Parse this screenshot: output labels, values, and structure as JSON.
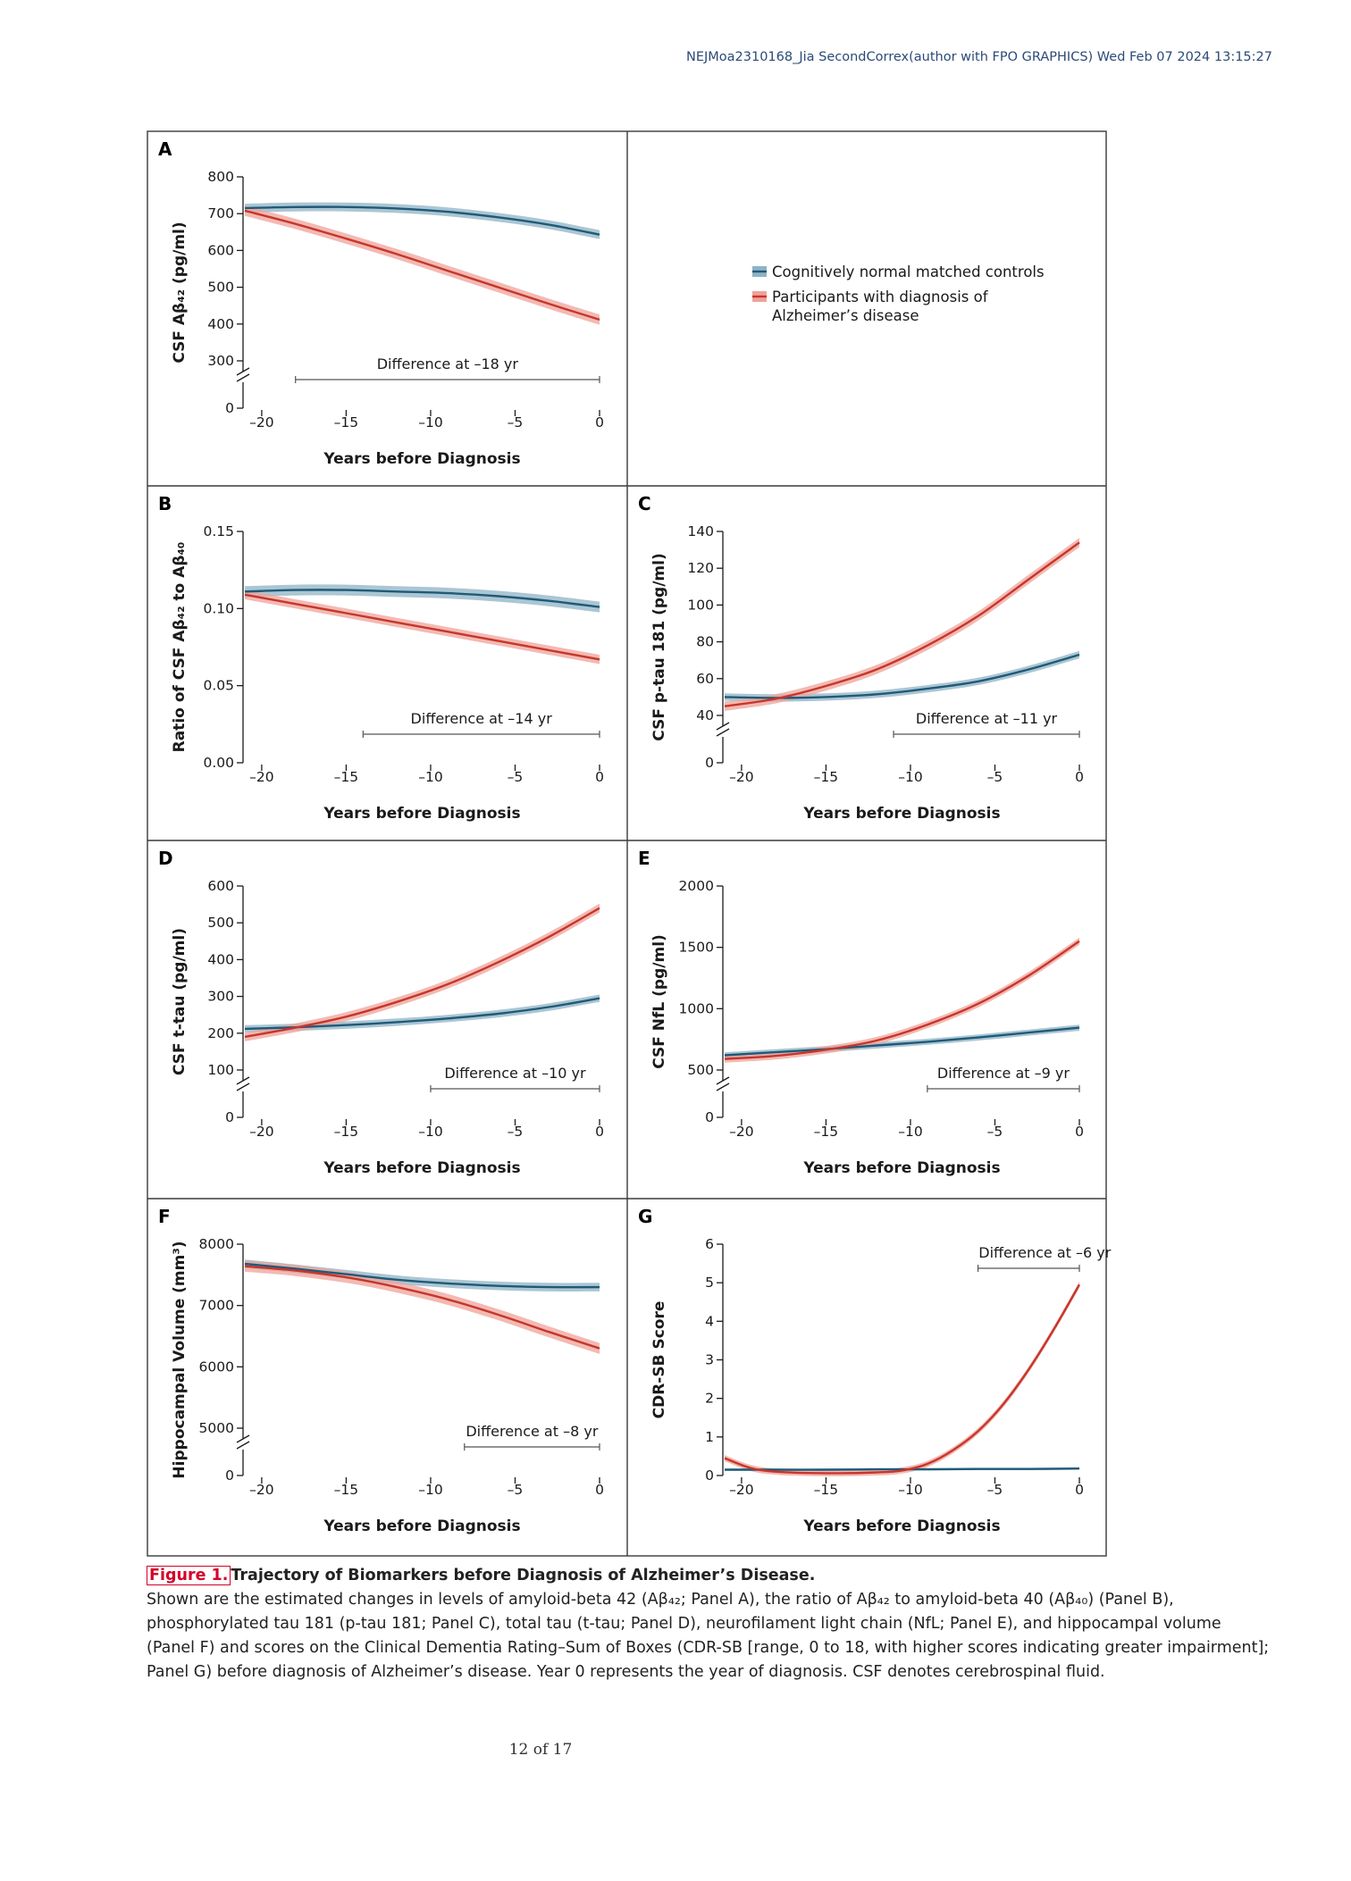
{
  "header": {
    "text": "NEJMoa2310168_Jia   SecondCorrex(author with FPO GRAPHICS)   Wed Feb 07 2024 13:15:27"
  },
  "colors": {
    "control_line": "#1f5a78",
    "control_band": "#8fb3c4",
    "ad_line": "#c8352b",
    "ad_band": "#eea39a",
    "frame": "#3a3a3a"
  },
  "legend": {
    "items": [
      {
        "label": "Cognitively normal matched controls",
        "color": "#1f5a78",
        "band": "#8fb3c4"
      },
      {
        "label_lines": [
          "Participants with diagnosis of",
          "Alzheimer’s disease"
        ],
        "color": "#c8352b",
        "band": "#eea39a"
      }
    ]
  },
  "chart_data": [
    {
      "panel": "A",
      "type": "line",
      "xlabel": "Years before Diagnosis",
      "ylabel": "CSF Aβ₄₂ (pg/ml)",
      "xlim": [
        -21,
        0
      ],
      "xticks": [
        -20,
        -15,
        -10,
        -5,
        0
      ],
      "ylim": [
        300,
        800
      ],
      "yticks": [
        300,
        400,
        500,
        600,
        700,
        800
      ],
      "axis_break": true,
      "difference_label": "Difference at –18 yr",
      "difference_at": -18,
      "series": [
        {
          "name": "Cognitively normal matched controls",
          "x": [
            -21,
            -18,
            -15,
            -12,
            -9,
            -6,
            -3,
            0
          ],
          "y": [
            715,
            718,
            718,
            714,
            705,
            690,
            670,
            643
          ],
          "band": 12
        },
        {
          "name": "Participants with diagnosis of Alzheimer’s disease",
          "x": [
            -21,
            -18,
            -15,
            -12,
            -9,
            -6,
            -3,
            0
          ],
          "y": [
            708,
            672,
            632,
            590,
            545,
            500,
            455,
            412
          ],
          "band": 14
        }
      ]
    },
    {
      "panel": "B",
      "type": "line",
      "xlabel": "Years before Diagnosis",
      "ylabel": "Ratio of CSF Aβ₄₂ to Aβ₄₀",
      "xlim": [
        -21,
        0
      ],
      "xticks": [
        -20,
        -15,
        -10,
        -5,
        0
      ],
      "ylim": [
        0,
        0.15
      ],
      "yticks": [
        0.0,
        0.05,
        0.1,
        0.15
      ],
      "ytick_labels": [
        "0.00",
        "0.05",
        "0.10",
        "0.15"
      ],
      "axis_break": false,
      "difference_label": "Difference at –14 yr",
      "difference_at": -14,
      "series": [
        {
          "name": "Cognitively normal matched controls",
          "x": [
            -21,
            -18,
            -15,
            -12,
            -9,
            -6,
            -3,
            0
          ],
          "y": [
            0.111,
            0.112,
            0.112,
            0.111,
            0.11,
            0.108,
            0.105,
            0.101
          ],
          "band": 0.0035
        },
        {
          "name": "Participants with diagnosis of Alzheimer’s disease",
          "x": [
            -21,
            -18,
            -15,
            -12,
            -9,
            -6,
            -3,
            0
          ],
          "y": [
            0.109,
            0.103,
            0.097,
            0.091,
            0.085,
            0.079,
            0.073,
            0.067
          ],
          "band": 0.003
        }
      ]
    },
    {
      "panel": "C",
      "type": "line",
      "xlabel": "Years before Diagnosis",
      "ylabel": "CSF p-tau 181 (pg/ml)",
      "xlim": [
        -21,
        0
      ],
      "xticks": [
        -20,
        -15,
        -10,
        -5,
        0
      ],
      "ylim": [
        40,
        140
      ],
      "yticks": [
        40,
        60,
        80,
        100,
        120,
        140
      ],
      "axis_break": true,
      "difference_label": "Difference at –11 yr",
      "difference_at": -11,
      "series": [
        {
          "name": "Cognitively normal matched controls",
          "x": [
            -21,
            -18,
            -15,
            -12,
            -9,
            -6,
            -3,
            0
          ],
          "y": [
            50,
            49.5,
            50,
            51.5,
            54.5,
            58.5,
            65,
            73
          ],
          "band": 2
        },
        {
          "name": "Participants with diagnosis of Alzheimer’s disease",
          "x": [
            -21,
            -18,
            -15,
            -12,
            -9,
            -6,
            -3,
            0
          ],
          "y": [
            45,
            49,
            56,
            65,
            78,
            94,
            114,
            134
          ],
          "band": 2.5
        }
      ]
    },
    {
      "panel": "D",
      "type": "line",
      "xlabel": "Years before Diagnosis",
      "ylabel": "CSF t-tau (pg/ml)",
      "xlim": [
        -21,
        0
      ],
      "xticks": [
        -20,
        -15,
        -10,
        -5,
        0
      ],
      "ylim": [
        100,
        600
      ],
      "yticks": [
        100,
        200,
        300,
        400,
        500,
        600
      ],
      "axis_break": true,
      "difference_label": "Difference at –10 yr",
      "difference_at": -10,
      "series": [
        {
          "name": "Cognitively normal matched controls",
          "x": [
            -21,
            -18,
            -15,
            -12,
            -9,
            -6,
            -3,
            0
          ],
          "y": [
            212,
            216,
            222,
            230,
            240,
            253,
            271,
            295
          ],
          "band": 10
        },
        {
          "name": "Participants with diagnosis of Alzheimer’s disease",
          "x": [
            -21,
            -18,
            -15,
            -12,
            -9,
            -6,
            -3,
            0
          ],
          "y": [
            190,
            215,
            245,
            285,
            333,
            393,
            462,
            540
          ],
          "band": 12
        }
      ]
    },
    {
      "panel": "E",
      "type": "line",
      "xlabel": "Years before Diagnosis",
      "ylabel": "CSF NfL (pg/ml)",
      "xlim": [
        -21,
        0
      ],
      "xticks": [
        -20,
        -15,
        -10,
        -5,
        0
      ],
      "ylim": [
        500,
        2000
      ],
      "yticks": [
        500,
        1000,
        1500,
        2000
      ],
      "axis_break": true,
      "difference_label": "Difference at –9 yr",
      "difference_at": -9,
      "series": [
        {
          "name": "Cognitively normal matched controls",
          "x": [
            -21,
            -18,
            -15,
            -12,
            -9,
            -6,
            -3,
            0
          ],
          "y": [
            620,
            645,
            670,
            700,
            730,
            765,
            805,
            845
          ],
          "band": 25
        },
        {
          "name": "Participants with diagnosis of Alzheimer’s disease",
          "x": [
            -21,
            -18,
            -15,
            -12,
            -9,
            -6,
            -3,
            0
          ],
          "y": [
            590,
            615,
            665,
            740,
            870,
            1040,
            1270,
            1550
          ],
          "band": 30
        }
      ]
    },
    {
      "panel": "F",
      "type": "line",
      "xlabel": "Years before Diagnosis",
      "ylabel": "Hippocampal Volume (mm³)",
      "xlim": [
        -21,
        0
      ],
      "xticks": [
        -20,
        -15,
        -10,
        -5,
        0
      ],
      "ylim": [
        5000,
        8000
      ],
      "yticks": [
        5000,
        6000,
        7000,
        8000
      ],
      "axis_break": true,
      "difference_label": "Difference at –8 yr",
      "difference_at": -8,
      "series": [
        {
          "name": "Cognitively normal matched controls",
          "x": [
            -21,
            -18,
            -15,
            -12,
            -9,
            -6,
            -3,
            0
          ],
          "y": [
            7680,
            7600,
            7510,
            7420,
            7360,
            7320,
            7300,
            7300
          ],
          "band": 70
        },
        {
          "name": "Participants with diagnosis of Alzheimer’s disease",
          "x": [
            -21,
            -18,
            -15,
            -12,
            -9,
            -6,
            -3,
            0
          ],
          "y": [
            7640,
            7570,
            7460,
            7300,
            7100,
            6850,
            6570,
            6300
          ],
          "band": 90
        }
      ]
    },
    {
      "panel": "G",
      "type": "line",
      "xlabel": "Years before Diagnosis",
      "ylabel": "CDR-SB Score",
      "xlim": [
        -21,
        0
      ],
      "xticks": [
        -20,
        -15,
        -10,
        -5,
        0
      ],
      "ylim": [
        0,
        6
      ],
      "yticks": [
        0,
        1,
        2,
        3,
        4,
        5,
        6
      ],
      "axis_break": false,
      "difference_label": "Difference at –6 yr",
      "difference_at": -6,
      "series": [
        {
          "name": "Cognitively normal matched controls",
          "x": [
            -21,
            -18,
            -15,
            -12,
            -9,
            -6,
            -3,
            0
          ],
          "y": [
            0.15,
            0.15,
            0.15,
            0.16,
            0.16,
            0.17,
            0.17,
            0.18
          ],
          "band": 0.03
        },
        {
          "name": "Participants with diagnosis of Alzheimer’s disease",
          "x": [
            -21,
            -19.5,
            -18,
            -15,
            -12,
            -10.5,
            -9,
            -7.5,
            -6,
            -4.5,
            -3,
            -1.5,
            0
          ],
          "y": [
            0.45,
            0.2,
            0.1,
            0.06,
            0.08,
            0.13,
            0.3,
            0.65,
            1.15,
            1.85,
            2.75,
            3.8,
            4.95
          ],
          "band": 0.08
        }
      ]
    }
  ],
  "caption": {
    "figure_label": "Figure 1.",
    "title": "Trajectory of Biomarkers before Diagnosis of Alzheimer’s Disease.",
    "body": "Shown are the estimated changes in levels of amyloid-beta 42 (Aβ₄₂; Panel A), the ratio of Aβ₄₂ to amyloid-beta 40 (Aβ₄₀) (Panel B), phosphorylated tau 181 (p-tau 181; Panel C), total tau (t-tau; Panel D), neurofilament light chain (NfL; Panel E), and hippocampal volume (Panel F) and scores on the Clinical Dementia Rating–Sum of Boxes (CDR-SB [range, 0 to 18, with higher scores indicating greater impairment]; Panel G) before diagnosis of Alzheimer’s disease. Year 0 represents the year of diagnosis. CSF denotes cerebrospinal fluid."
  },
  "page": {
    "number_text": "12 of 17"
  }
}
